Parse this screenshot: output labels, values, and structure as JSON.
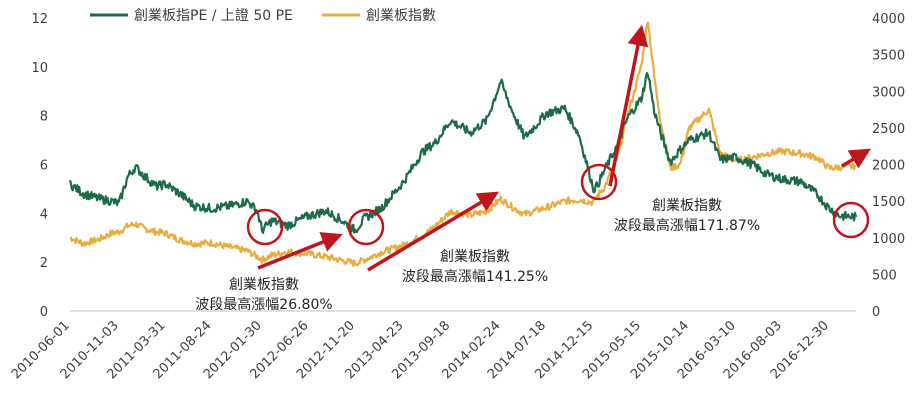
{
  "chart_data": {
    "type": "line",
    "title": "",
    "legend_position": "top-left",
    "grid": false,
    "x_ticks": [
      "2010-06-01",
      "2010-11-03",
      "2011-03-31",
      "2011-08-24",
      "2012-01-30",
      "2012-06-26",
      "2012-11-20",
      "2013-04-23",
      "2013-09-18",
      "2014-02-24",
      "2014-07-18",
      "2014-12-15",
      "2015-05-15",
      "2015-10-14",
      "2016-03-10",
      "2016-08-03",
      "2016-12-30"
    ],
    "y_left": {
      "range": [
        0,
        12
      ],
      "ticks": [
        "0",
        "2",
        "4",
        "6",
        "8",
        "10",
        "12"
      ]
    },
    "y_right": {
      "range": [
        0,
        4000
      ],
      "ticks": [
        "0",
        "500",
        "1000",
        "1500",
        "2000",
        "2500",
        "3000",
        "3500",
        "4000"
      ]
    },
    "series": [
      {
        "name": "創業板指PE / 上證 50 PE",
        "axis": "left",
        "color": "#1e6b4a",
        "points": [
          [
            "2010-06-01",
            5.2
          ],
          [
            "2010-07-15",
            4.8
          ],
          [
            "2010-09-01",
            4.6
          ],
          [
            "2010-10-10",
            4.5
          ],
          [
            "2010-11-03",
            4.4
          ],
          [
            "2010-12-01",
            5.5
          ],
          [
            "2010-12-25",
            5.9
          ],
          [
            "2011-01-25",
            5.5
          ],
          [
            "2011-03-01",
            5.1
          ],
          [
            "2011-03-31",
            5.2
          ],
          [
            "2011-05-15",
            4.8
          ],
          [
            "2011-07-01",
            4.3
          ],
          [
            "2011-08-24",
            4.2
          ],
          [
            "2011-10-20",
            4.3
          ],
          [
            "2011-12-15",
            4.5
          ],
          [
            "2012-01-15",
            4.1
          ],
          [
            "2012-01-30",
            3.3
          ],
          [
            "2012-03-01",
            3.7
          ],
          [
            "2012-04-20",
            3.5
          ],
          [
            "2012-06-26",
            3.9
          ],
          [
            "2012-08-20",
            4.1
          ],
          [
            "2012-10-10",
            3.7
          ],
          [
            "2012-11-20",
            3.3
          ],
          [
            "2012-12-20",
            3.8
          ],
          [
            "2013-02-10",
            4.2
          ],
          [
            "2013-04-23",
            5.3
          ],
          [
            "2013-06-20",
            6.5
          ],
          [
            "2013-08-01",
            6.9
          ],
          [
            "2013-09-18",
            7.8
          ],
          [
            "2013-11-20",
            7.3
          ],
          [
            "2014-01-10",
            7.8
          ],
          [
            "2014-02-24",
            9.4
          ],
          [
            "2014-04-01",
            8.2
          ],
          [
            "2014-05-10",
            7.1
          ],
          [
            "2014-06-15",
            7.6
          ],
          [
            "2014-07-18",
            8.1
          ],
          [
            "2014-09-15",
            8.3
          ],
          [
            "2014-10-30",
            7.2
          ],
          [
            "2014-12-15",
            5.0
          ],
          [
            "2014-12-25",
            5.1
          ],
          [
            "2015-01-20",
            5.8
          ],
          [
            "2015-03-01",
            6.8
          ],
          [
            "2015-04-01",
            7.9
          ],
          [
            "2015-05-15",
            8.7
          ],
          [
            "2015-06-05",
            9.8
          ],
          [
            "2015-06-25",
            8.2
          ],
          [
            "2015-07-15",
            7.3
          ],
          [
            "2015-08-15",
            6.1
          ],
          [
            "2015-09-15",
            6.6
          ],
          [
            "2015-10-14",
            7.0
          ],
          [
            "2015-12-15",
            7.3
          ],
          [
            "2016-01-20",
            6.2
          ],
          [
            "2016-03-10",
            6.3
          ],
          [
            "2016-05-01",
            6.0
          ],
          [
            "2016-06-15",
            5.6
          ],
          [
            "2016-08-03",
            5.4
          ],
          [
            "2016-10-01",
            5.3
          ],
          [
            "2016-11-20",
            4.8
          ],
          [
            "2016-12-30",
            4.2
          ],
          [
            "2017-02-01",
            3.9
          ],
          [
            "2017-03-25",
            3.85
          ]
        ]
      },
      {
        "name": "創業板指數",
        "axis": "right",
        "color": "#e8ad40",
        "points": [
          [
            "2010-06-01",
            1000
          ],
          [
            "2010-07-15",
            920
          ],
          [
            "2010-09-01",
            980
          ],
          [
            "2010-10-10",
            1060
          ],
          [
            "2010-11-03",
            1080
          ],
          [
            "2010-12-01",
            1160
          ],
          [
            "2010-12-25",
            1190
          ],
          [
            "2011-01-25",
            1120
          ],
          [
            "2011-03-01",
            1080
          ],
          [
            "2011-03-31",
            1060
          ],
          [
            "2011-05-15",
            970
          ],
          [
            "2011-07-01",
            920
          ],
          [
            "2011-08-24",
            930
          ],
          [
            "2011-10-20",
            870
          ],
          [
            "2011-12-15",
            820
          ],
          [
            "2012-01-15",
            740
          ],
          [
            "2012-01-30",
            700
          ],
          [
            "2012-03-01",
            760
          ],
          [
            "2012-04-20",
            810
          ],
          [
            "2012-06-26",
            780
          ],
          [
            "2012-08-20",
            740
          ],
          [
            "2012-10-10",
            690
          ],
          [
            "2012-11-20",
            650
          ],
          [
            "2012-12-20",
            700
          ],
          [
            "2013-02-10",
            800
          ],
          [
            "2013-04-23",
            900
          ],
          [
            "2013-06-20",
            1020
          ],
          [
            "2013-08-01",
            1160
          ],
          [
            "2013-09-18",
            1360
          ],
          [
            "2013-11-20",
            1310
          ],
          [
            "2014-01-10",
            1360
          ],
          [
            "2014-02-24",
            1530
          ],
          [
            "2014-04-01",
            1420
          ],
          [
            "2014-05-10",
            1320
          ],
          [
            "2014-06-15",
            1370
          ],
          [
            "2014-07-18",
            1410
          ],
          [
            "2014-09-15",
            1500
          ],
          [
            "2014-10-30",
            1520
          ],
          [
            "2014-12-15",
            1480
          ],
          [
            "2014-12-25",
            1560
          ],
          [
            "2015-01-20",
            1700
          ],
          [
            "2015-03-01",
            2100
          ],
          [
            "2015-04-01",
            2650
          ],
          [
            "2015-05-15",
            3350
          ],
          [
            "2015-06-05",
            3980
          ],
          [
            "2015-06-25",
            3200
          ],
          [
            "2015-07-15",
            2600
          ],
          [
            "2015-08-15",
            1950
          ],
          [
            "2015-09-15",
            2000
          ],
          [
            "2015-10-14",
            2500
          ],
          [
            "2015-12-15",
            2750
          ],
          [
            "2016-01-20",
            2150
          ],
          [
            "2016-03-10",
            2050
          ],
          [
            "2016-05-01",
            2100
          ],
          [
            "2016-06-15",
            2150
          ],
          [
            "2016-08-03",
            2180
          ],
          [
            "2016-10-01",
            2150
          ],
          [
            "2016-11-20",
            2100
          ],
          [
            "2016-12-30",
            1950
          ],
          [
            "2017-02-01",
            1960
          ],
          [
            "2017-03-25",
            1980
          ]
        ]
      }
    ],
    "annotations": [
      {
        "lines": [
          "創業板指數",
          "波段最高漲幅26.80%"
        ]
      },
      {
        "lines": [
          "創業板指數",
          "波段最高漲幅141.25%"
        ]
      },
      {
        "lines": [
          "創業板指數",
          "波段最高漲幅171.87%"
        ]
      }
    ],
    "highlight_circles": [
      "2012-01-30",
      "2012-11-20",
      "2014-12-15",
      "2017-03-01"
    ]
  }
}
